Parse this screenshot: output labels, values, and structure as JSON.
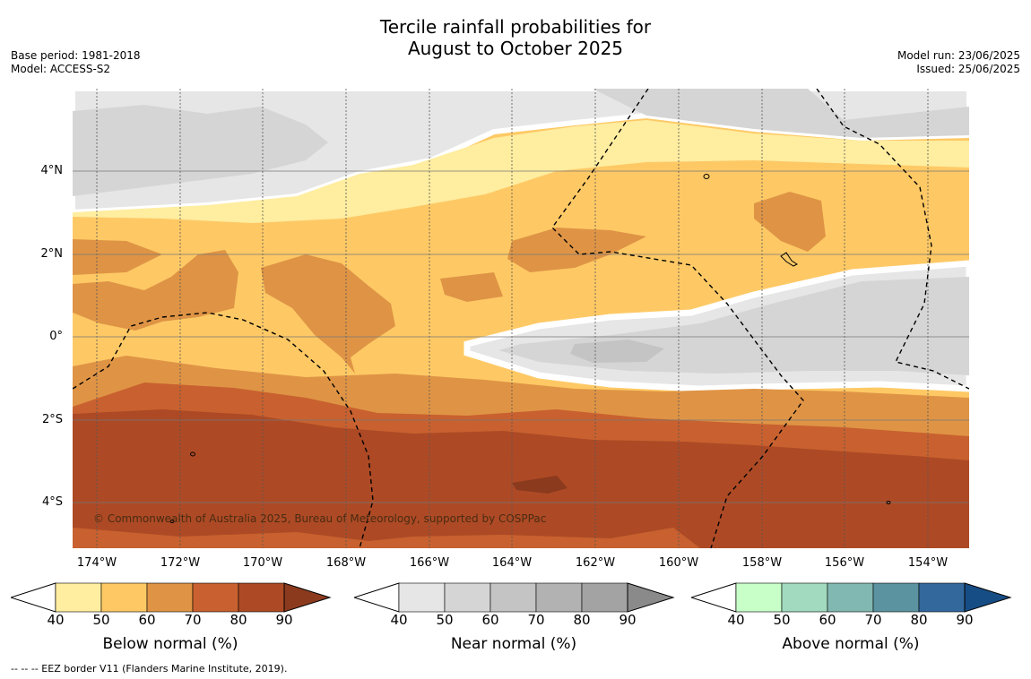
{
  "title_line1": "Tercile rainfall probabilities for",
  "title_line2": "August to October 2025",
  "base_period": "Base period: 1981-2018",
  "model": "Model: ACCESS-S2",
  "model_run": "Model run: 23/06/2025",
  "issued": "Issued: 25/06/2025",
  "copyright": "© Commonwealth of Australia 2025, Bureau of Meteorology, supported by COSPPac",
  "footnote": "--  --  -- EEZ border V11 (Flanders Marine Institute, 2019).",
  "lon_labels": [
    "174°W",
    "172°W",
    "170°W",
    "168°W",
    "166°W",
    "164°W",
    "162°W",
    "160°W",
    "158°W",
    "156°W",
    "154°W"
  ],
  "lat_labels": [
    "4°N",
    "2°N",
    "0°",
    "2°S",
    "4°S"
  ],
  "colorbars": [
    {
      "title": "Below normal (%)",
      "ticks": [
        "40",
        "50",
        "60",
        "70",
        "80",
        "90"
      ],
      "colors": [
        "#ffeda0",
        "#fec965",
        "#df9445",
        "#c8612f",
        "#ad4a25",
        "#8b3a1e"
      ]
    },
    {
      "title": "Near normal (%)",
      "ticks": [
        "40",
        "50",
        "60",
        "70",
        "80",
        "90"
      ],
      "colors": [
        "#e6e6e6",
        "#d5d5d5",
        "#c4c4c4",
        "#b2b2b2",
        "#a3a3a3",
        "#8a8a8a"
      ]
    },
    {
      "title": "Above normal (%)",
      "ticks": [
        "40",
        "50",
        "60",
        "70",
        "80",
        "90"
      ],
      "colors": [
        "#c8ffc8",
        "#a1dabe",
        "#82b8b2",
        "#5b93a0",
        "#33689c",
        "#174d85"
      ]
    }
  ]
}
